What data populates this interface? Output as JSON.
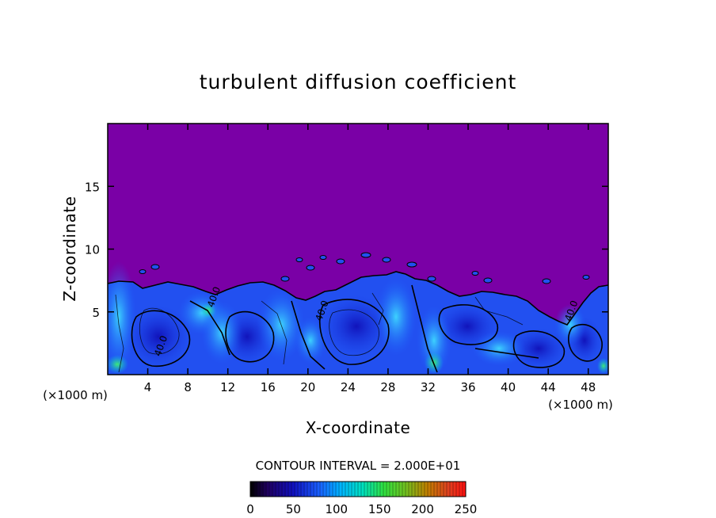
{
  "chart_data": {
    "type": "heatmap",
    "title": "turbulent diffusion coefficient",
    "xlabel": "X-coordinate",
    "ylabel": "Z-coordinate",
    "x_unit_left": "(×1000 m)",
    "x_unit_right": "(×1000 m)",
    "xlim": [
      0,
      50
    ],
    "ylim": [
      0,
      20
    ],
    "xticks": [
      4,
      8,
      12,
      16,
      20,
      24,
      28,
      32,
      36,
      40,
      44,
      48
    ],
    "xtick_labels": [
      "4",
      "8",
      "12",
      "16",
      "20",
      "24",
      "28",
      "32",
      "36",
      "40",
      "44",
      "48"
    ],
    "yticks": [
      5,
      10,
      15
    ],
    "ytick_labels": [
      "5",
      "10",
      "15"
    ],
    "contour_interval_text": "CONTOUR INTERVAL = 2.000E+01",
    "contour_interval": 20,
    "contour_labels": [
      {
        "text": "40.0",
        "x": 5.6,
        "z": 2.2
      },
      {
        "text": "40.0",
        "x": 10.9,
        "z": 6.1
      },
      {
        "text": "40.0",
        "x": 21.7,
        "z": 5.0
      },
      {
        "text": "40.0",
        "x": 46.6,
        "z": 5.0
      }
    ],
    "colorbar": {
      "min": 0,
      "max": 250,
      "tick_values": [
        0,
        50,
        100,
        150,
        200,
        250
      ],
      "tick_labels": [
        "0",
        "50",
        "100",
        "150",
        "200",
        "250"
      ]
    },
    "colors": {
      "background_field": "#7a00a6",
      "low_blue": "#1414c8",
      "mid_blue": "#2a6cff",
      "cyan": "#00c8e6",
      "green": "#28e080"
    }
  }
}
